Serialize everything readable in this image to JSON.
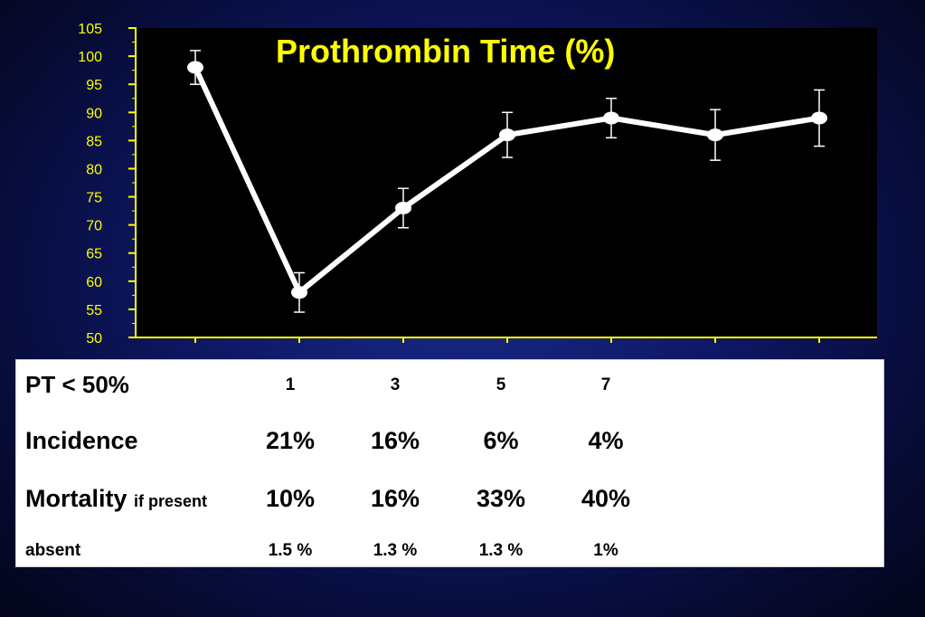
{
  "chart_data": {
    "type": "line",
    "title": "Prothrombin Time (%)",
    "ylim": [
      50,
      105
    ],
    "yticks": [
      50,
      55,
      60,
      65,
      70,
      75,
      80,
      85,
      90,
      95,
      100,
      105
    ],
    "series": [
      {
        "values": [
          98,
          58,
          73,
          86,
          89,
          86,
          89
        ],
        "error": [
          3,
          3.5,
          3.5,
          4,
          3.5,
          4.5,
          5
        ]
      }
    ],
    "colors": {
      "axis": "#ffff00",
      "plot_bg": "#000000",
      "line": "#ffffff"
    }
  },
  "table": {
    "pt_label": "PT < 50%",
    "columns": [
      "1",
      "3",
      "5",
      "7"
    ],
    "incidence_label": "Incidence",
    "incidence": [
      "21%",
      "16%",
      "6%",
      "4%"
    ],
    "mortality_label": "Mortality",
    "mortality_sublabel": "if present",
    "mortality_present": [
      "10%",
      "16%",
      "33%",
      "40%"
    ],
    "absent_label": "absent",
    "mortality_absent": [
      "1.5 %",
      "1.3 %",
      "1.3 %",
      "1%"
    ]
  }
}
